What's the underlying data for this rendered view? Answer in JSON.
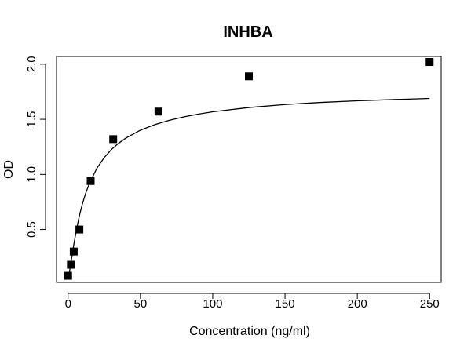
{
  "chart_data": {
    "type": "scatter",
    "title": "INHBA",
    "xlabel": "Concentration (ng/ml)",
    "ylabel": "OD",
    "xlim": [
      -8,
      258
    ],
    "ylim": [
      0.02,
      2.07
    ],
    "xticks": [
      0,
      50,
      100,
      150,
      200,
      250
    ],
    "yticks": [
      0.5,
      1.0,
      1.5,
      2.0
    ],
    "xtick_labels": [
      "0",
      "50",
      "100",
      "150",
      "200",
      "250"
    ],
    "ytick_labels": [
      "0.5",
      "1.0",
      "1.5",
      "2.0"
    ],
    "grid": false,
    "legend": "none",
    "series": [
      {
        "x": [
          0,
          1.95,
          3.9,
          7.8,
          15.6,
          31.2,
          62.5,
          125,
          250
        ],
        "y": [
          0.08,
          0.18,
          0.3,
          0.5,
          0.94,
          1.32,
          1.57,
          1.89,
          2.02
        ]
      }
    ],
    "fit_curve": {
      "type": "four-parameter-logistic",
      "x": [
        0,
        1,
        2,
        3,
        4,
        6,
        8,
        10,
        12,
        15,
        20,
        25,
        30,
        35,
        40,
        50,
        60,
        70,
        80,
        90,
        100,
        125,
        150,
        175,
        200,
        225,
        250
      ],
      "y": [
        0.06,
        0.119,
        0.202,
        0.287,
        0.368,
        0.513,
        0.636,
        0.738,
        0.823,
        0.927,
        1.058,
        1.153,
        1.226,
        1.283,
        1.33,
        1.401,
        1.452,
        1.491,
        1.522,
        1.547,
        1.568,
        1.607,
        1.634,
        1.653,
        1.668,
        1.679,
        1.689
      ]
    },
    "colors": {
      "marker": "#000000",
      "line": "#000000",
      "axis": "#000000",
      "background": "#ffffff"
    }
  }
}
